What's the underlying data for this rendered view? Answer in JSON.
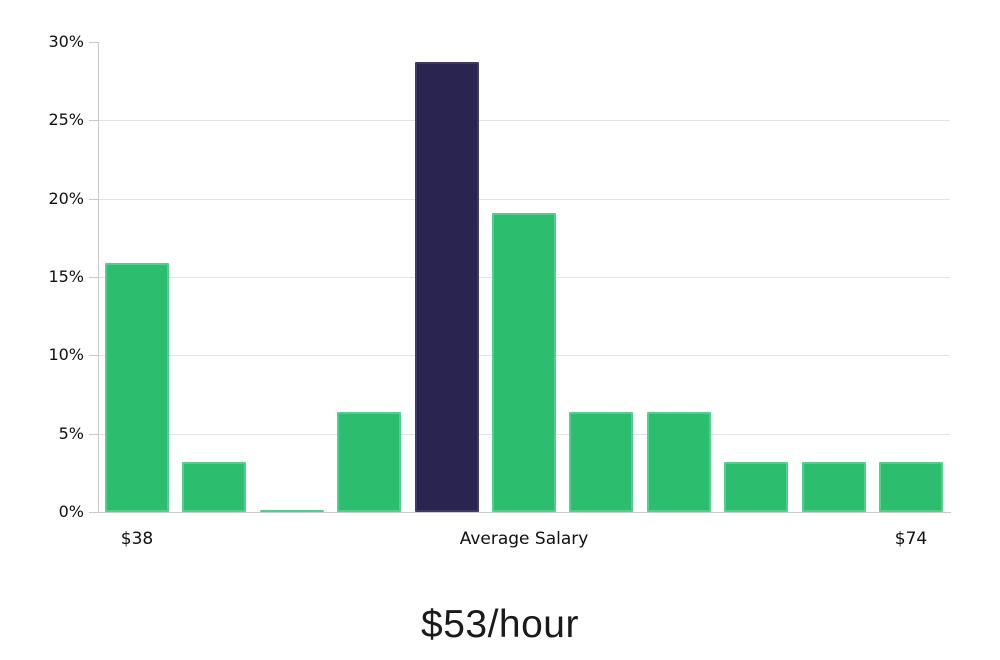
{
  "chart_data": {
    "type": "bar",
    "title": "$53/hour",
    "ylabel": "",
    "xlabel": "",
    "ylim": [
      0,
      30
    ],
    "grid": true,
    "legend": "none",
    "y_ticks": [
      {
        "pct": 0,
        "label": "0%"
      },
      {
        "pct": 5,
        "label": "5%"
      },
      {
        "pct": 10,
        "label": "10%"
      },
      {
        "pct": 15,
        "label": "15%"
      },
      {
        "pct": 20,
        "label": "20%"
      },
      {
        "pct": 25,
        "label": "25%"
      },
      {
        "pct": 30,
        "label": "30%"
      }
    ],
    "gridline_pcts": [
      5,
      10,
      15,
      20,
      25
    ],
    "bars": [
      {
        "value": 15.9,
        "role": "normal"
      },
      {
        "value": 3.2,
        "role": "normal"
      },
      {
        "value": 0.1,
        "role": "normal"
      },
      {
        "value": 6.4,
        "role": "normal"
      },
      {
        "value": 28.7,
        "role": "highlight"
      },
      {
        "value": 19.1,
        "role": "normal"
      },
      {
        "value": 6.4,
        "role": "normal"
      },
      {
        "value": 6.4,
        "role": "normal"
      },
      {
        "value": 3.2,
        "role": "normal"
      },
      {
        "value": 3.2,
        "role": "normal"
      },
      {
        "value": 3.2,
        "role": "normal"
      }
    ],
    "highlight_index": 4,
    "x_tick_labels": [
      {
        "label": "$38",
        "anchor": "bar",
        "bar_index": 0
      },
      {
        "label": "Average Salary",
        "anchor": "center"
      },
      {
        "label": "$74",
        "anchor": "bar",
        "bar_index": 10
      }
    ],
    "colors": {
      "bar": "#2cbd6f",
      "bar_border": "#4fd18c",
      "highlight_bar": "#2a2450",
      "highlight_border": "#3d3968",
      "gridline": "#e4e4e4",
      "axis": "#c9c9c9",
      "text": "#101010"
    }
  }
}
